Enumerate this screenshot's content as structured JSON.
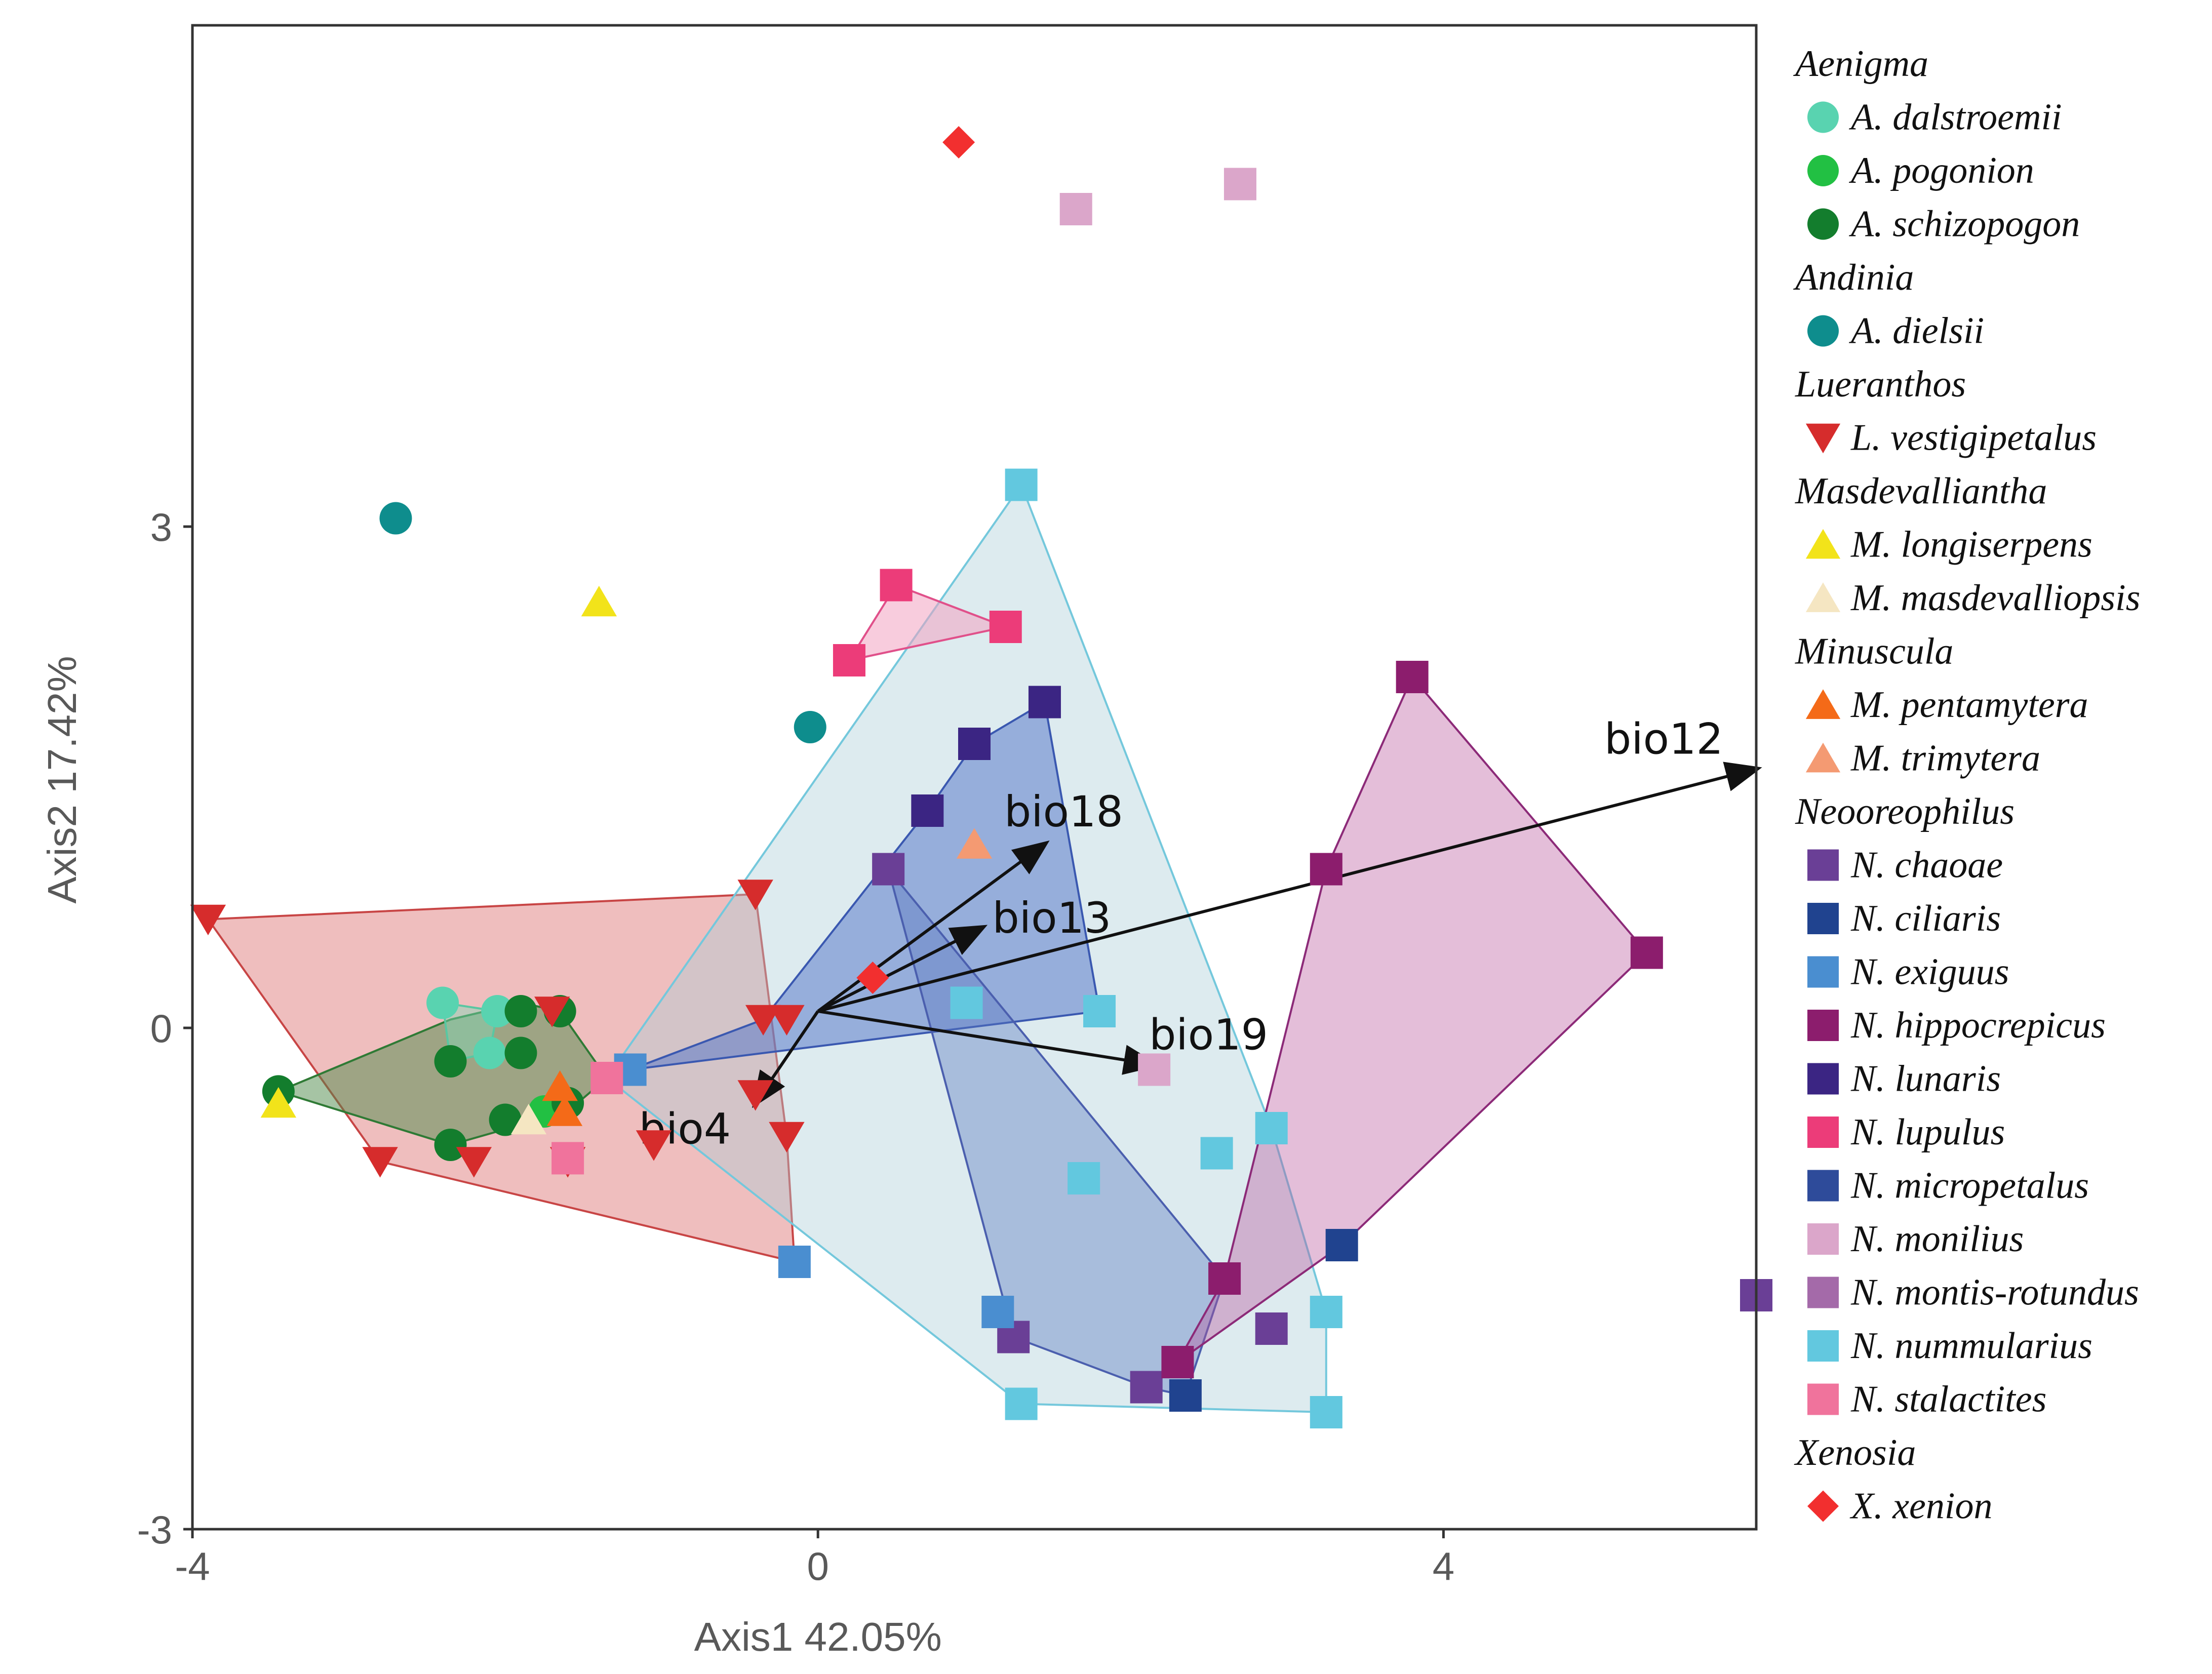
{
  "chart_data": {
    "type": "scatter",
    "xlabel": "Axis1 42.05%",
    "ylabel": "Axis2 17.42%",
    "xlim": [
      -4,
      6
    ],
    "ylim": [
      -3,
      6
    ],
    "x_ticks": [
      "-4",
      "0",
      "4"
    ],
    "y_ticks": [
      "-3",
      "0",
      "3"
    ],
    "groups": [
      {
        "genus": "Aenigma",
        "species": [
          {
            "name": "A. dalstroemii",
            "shape": "circle",
            "color": "#59d3b0",
            "points": [
              [
                -2.4,
                0.15
              ],
              [
                -2.1,
                -0.15
              ],
              [
                -2.05,
                0.1
              ]
            ]
          },
          {
            "name": "A. pogonion",
            "shape": "circle",
            "color": "#22c043",
            "points": [
              [
                -1.75,
                -0.5
              ],
              [
                -1.65,
                -0.45
              ]
            ]
          },
          {
            "name": "A. schizopogon",
            "shape": "circle",
            "color": "#137d2d",
            "points": [
              [
                -3.45,
                -0.38
              ],
              [
                -2.35,
                -0.2
              ],
              [
                -2.35,
                -0.7
              ],
              [
                -1.9,
                0.1
              ],
              [
                -1.9,
                -0.15
              ],
              [
                -1.65,
                0.1
              ],
              [
                -1.6,
                -0.45
              ],
              [
                -2.0,
                -0.55
              ]
            ]
          }
        ]
      },
      {
        "genus": "Andinia",
        "species": [
          {
            "name": "A. dielsii",
            "shape": "circle",
            "color": "#0e8d8d",
            "points": [
              [
                -2.7,
                3.05
              ],
              [
                -0.05,
                1.8
              ]
            ]
          }
        ]
      },
      {
        "genus": "Lueranthos",
        "species": [
          {
            "name": "L. vestigipetalus",
            "shape": "triangle-down",
            "color": "#d62c2c",
            "points": [
              [
                -3.9,
                0.65
              ],
              [
                -2.8,
                -0.8
              ],
              [
                -2.2,
                -0.8
              ],
              [
                -1.7,
                0.1
              ],
              [
                -1.6,
                -0.8
              ],
              [
                -1.05,
                -0.7
              ],
              [
                -0.4,
                0.8
              ],
              [
                -0.4,
                -0.4
              ],
              [
                -0.35,
                0.05
              ],
              [
                -0.2,
                0.05
              ],
              [
                -0.2,
                -0.65
              ]
            ]
          }
        ]
      },
      {
        "genus": "Masdevalliantha",
        "species": [
          {
            "name": "M. longiserpens",
            "shape": "triangle-up",
            "color": "#f2e31a",
            "points": [
              [
                -1.4,
                2.55
              ],
              [
                -3.45,
                -0.45
              ]
            ]
          },
          {
            "name": "M. masdevalliopsis",
            "shape": "triangle-up",
            "color": "#f5e6c2",
            "points": [
              [
                -1.85,
                -0.55
              ]
            ]
          }
        ]
      },
      {
        "genus": "Minuscula",
        "species": [
          {
            "name": "M. pentamytera",
            "shape": "triangle-up",
            "color": "#f46a18",
            "points": [
              [
                -1.65,
                -0.35
              ],
              [
                -1.62,
                -0.5
              ]
            ]
          },
          {
            "name": "M. trimytera",
            "shape": "triangle-up",
            "color": "#f49a72",
            "points": [
              [
                1.0,
                1.1
              ]
            ]
          }
        ]
      },
      {
        "genus": "Neooreophilus",
        "species": [
          {
            "name": "N. chaoae",
            "shape": "square",
            "color": "#6a3f96",
            "points": [
              [
                0.45,
                0.95
              ],
              [
                1.25,
                -1.85
              ],
              [
                2.1,
                -2.15
              ],
              [
                2.9,
                -1.8
              ],
              [
                6.0,
                -1.6
              ]
            ]
          },
          {
            "name": "N. ciliaris",
            "shape": "square",
            "color": "#20438f",
            "points": [
              [
                2.35,
                -2.2
              ],
              [
                3.35,
                -1.3
              ]
            ]
          },
          {
            "name": "N. exiguus",
            "shape": "square",
            "color": "#4a8ed0",
            "points": [
              [
                -0.15,
                -1.4
              ],
              [
                1.15,
                -1.7
              ],
              [
                -1.2,
                -0.25
              ]
            ]
          },
          {
            "name": "N. hippocrepicus",
            "shape": "square",
            "color": "#8c1d6d",
            "points": [
              [
                3.8,
                2.1
              ],
              [
                3.25,
                0.95
              ],
              [
                5.3,
                0.45
              ],
              [
                2.6,
                -1.5
              ],
              [
                2.3,
                -2.0
              ]
            ]
          },
          {
            "name": "N. lunaris",
            "shape": "square",
            "color": "#3b2583",
            "points": [
              [
                1.45,
                1.95
              ],
              [
                1.0,
                1.7
              ],
              [
                0.7,
                1.3
              ]
            ]
          },
          {
            "name": "N. lupulus",
            "shape": "square",
            "color": "#ec3c79",
            "points": [
              [
                0.5,
                2.65
              ],
              [
                1.2,
                2.4
              ],
              [
                0.2,
                2.2
              ]
            ]
          },
          {
            "name": "N. micropetalus",
            "shape": "square",
            "color": "#2e4b9a",
            "points": []
          },
          {
            "name": "N. monilius",
            "shape": "square",
            "color": "#dba6ca",
            "points": [
              [
                1.65,
                4.9
              ],
              [
                2.7,
                5.05
              ],
              [
                2.15,
                -0.25
              ]
            ]
          },
          {
            "name": "N. montis-rotundus",
            "shape": "square",
            "color": "#a46aa9",
            "points": []
          },
          {
            "name": "N. nummularius",
            "shape": "square",
            "color": "#62c8df",
            "points": [
              [
                1.3,
                3.25
              ],
              [
                0.95,
                0.15
              ],
              [
                1.8,
                0.1
              ],
              [
                1.7,
                -0.9
              ],
              [
                2.55,
                -0.75
              ],
              [
                2.9,
                -0.6
              ],
              [
                3.25,
                -1.7
              ],
              [
                1.3,
                -2.25
              ],
              [
                3.25,
                -2.3
              ]
            ]
          },
          {
            "name": "N. stalactites",
            "shape": "square",
            "color": "#f0739c",
            "points": [
              [
                -1.35,
                -0.3
              ],
              [
                -1.6,
                -0.78
              ]
            ]
          }
        ]
      },
      {
        "genus": "Xenosia",
        "species": [
          {
            "name": "X. xenion",
            "shape": "diamond",
            "color": "#f22f2f",
            "points": [
              [
                0.9,
                5.3
              ],
              [
                0.35,
                0.3
              ]
            ]
          }
        ]
      }
    ],
    "hulls": [
      {
        "name": "Lueranthos hull",
        "fill": "#d96565",
        "stroke": "#c84545",
        "opacity": 0.42,
        "points": [
          [
            -3.9,
            0.65
          ],
          [
            -0.4,
            0.8
          ],
          [
            -0.2,
            -0.65
          ],
          [
            -0.15,
            -1.4
          ],
          [
            -2.8,
            -0.8
          ]
        ]
      },
      {
        "name": "N. nummularius hull",
        "fill": "#a9cdd6",
        "stroke": "#74c8dc",
        "opacity": 0.4,
        "points": [
          [
            1.3,
            3.25
          ],
          [
            2.9,
            -0.6
          ],
          [
            3.25,
            -1.7
          ],
          [
            3.25,
            -2.3
          ],
          [
            1.3,
            -2.25
          ],
          [
            -1.35,
            -0.3
          ]
        ]
      },
      {
        "name": "Neooreophilus blue hull",
        "fill": "#4f72c8",
        "stroke": "#3a58b0",
        "opacity": 0.5,
        "points": [
          [
            1.45,
            1.95
          ],
          [
            1.8,
            0.1
          ],
          [
            -1.2,
            -0.25
          ],
          [
            -0.35,
            0.05
          ],
          [
            0.7,
            1.3
          ],
          [
            1.0,
            1.7
          ]
        ]
      },
      {
        "name": "N. chaoae hull",
        "fill": "#5a78c0",
        "stroke": "#4b5fae",
        "opacity": 0.4,
        "points": [
          [
            0.45,
            0.95
          ],
          [
            1.25,
            -1.85
          ],
          [
            2.1,
            -2.15
          ],
          [
            2.35,
            -2.2
          ],
          [
            2.6,
            -1.5
          ]
        ]
      },
      {
        "name": "N. hippocrepicus hull",
        "fill": "#b8539c",
        "stroke": "#8c2a78",
        "opacity": 0.38,
        "points": [
          [
            3.8,
            2.1
          ],
          [
            5.3,
            0.45
          ],
          [
            3.35,
            -1.3
          ],
          [
            2.3,
            -2.0
          ],
          [
            2.6,
            -1.5
          ],
          [
            3.25,
            0.95
          ]
        ]
      },
      {
        "name": "N. lupulus hull",
        "fill": "#f2a3c1",
        "stroke": "#e0508a",
        "opacity": 0.55,
        "points": [
          [
            0.5,
            2.65
          ],
          [
            1.2,
            2.4
          ],
          [
            0.2,
            2.2
          ]
        ]
      },
      {
        "name": "A. schizopogon hull",
        "fill": "#4d8a4a",
        "stroke": "#2f7a35",
        "opacity": 0.5,
        "points": [
          [
            -3.45,
            -0.38
          ],
          [
            -2.35,
            0.05
          ],
          [
            -1.9,
            0.15
          ],
          [
            -1.65,
            0.1
          ],
          [
            -1.35,
            -0.3
          ],
          [
            -1.6,
            -0.5
          ],
          [
            -2.35,
            -0.7
          ]
        ]
      },
      {
        "name": "A. dalstroemii hull",
        "fill": "#7fd9b8",
        "stroke": "#59c7a2",
        "opacity": 0.45,
        "points": [
          [
            -2.4,
            0.15
          ],
          [
            -2.05,
            0.1
          ],
          [
            -2.1,
            -0.15
          ],
          [
            -2.35,
            -0.2
          ]
        ]
      }
    ],
    "vectors": [
      {
        "label": "bio12",
        "end": [
          6.0,
          1.55
        ]
      },
      {
        "label": "bio18",
        "end": [
          1.45,
          1.1
        ]
      },
      {
        "label": "bio13",
        "end": [
          1.05,
          0.6
        ]
      },
      {
        "label": "bio19",
        "end": [
          2.15,
          -0.22
        ]
      },
      {
        "label": "bio4",
        "end": [
          -0.4,
          -0.45
        ]
      }
    ],
    "vector_origin": [
      0.0,
      0.1
    ]
  }
}
